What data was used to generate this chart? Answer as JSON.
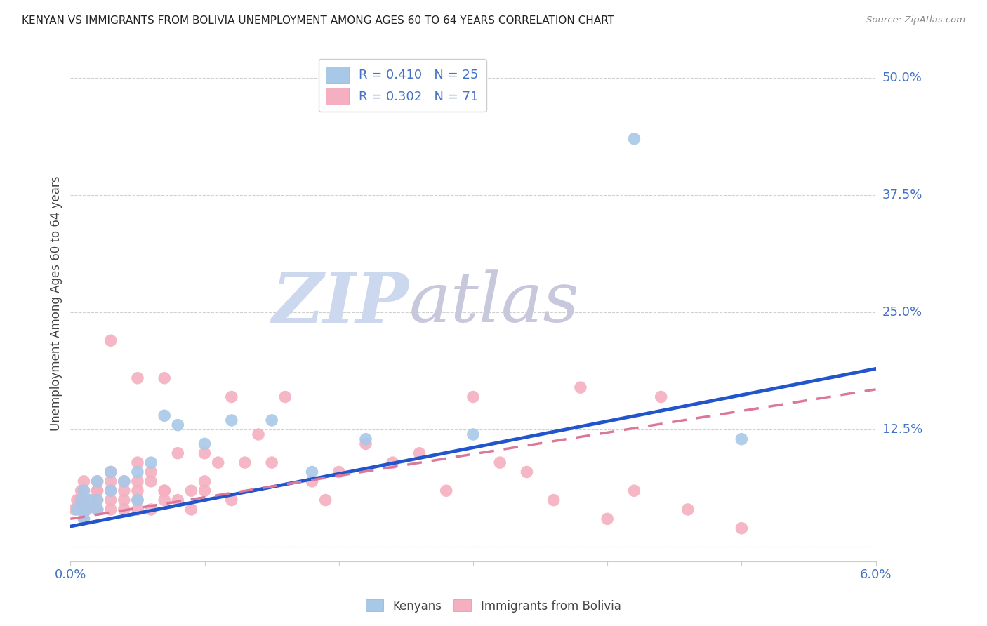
{
  "title": "KENYAN VS IMMIGRANTS FROM BOLIVIA UNEMPLOYMENT AMONG AGES 60 TO 64 YEARS CORRELATION CHART",
  "source": "Source: ZipAtlas.com",
  "ylabel": "Unemployment Among Ages 60 to 64 years",
  "ytick_labels": [
    "12.5%",
    "25.0%",
    "37.5%",
    "50.0%"
  ],
  "ytick_values": [
    0.125,
    0.25,
    0.375,
    0.5
  ],
  "xmin": 0.0,
  "xmax": 0.06,
  "ymin": -0.015,
  "ymax": 0.535,
  "kenyan_R": 0.41,
  "kenyan_N": 25,
  "bolivia_R": 0.302,
  "bolivia_N": 71,
  "kenyan_color": "#a8c8e8",
  "bolivia_color": "#f4b0c0",
  "kenyan_line_color": "#2255cc",
  "bolivia_line_color": "#dd7799",
  "kenyan_line_intercept": 0.022,
  "kenyan_line_slope": 2.8,
  "bolivia_line_intercept": 0.03,
  "bolivia_line_slope": 2.3,
  "watermark_zip_color": "#c8d8f0",
  "watermark_atlas_color": "#c8c8d8",
  "background_color": "#ffffff",
  "title_fontsize": 11,
  "kenyan_x": [
    0.0005,
    0.0008,
    0.001,
    0.001,
    0.0012,
    0.0015,
    0.002,
    0.002,
    0.002,
    0.003,
    0.003,
    0.004,
    0.005,
    0.005,
    0.006,
    0.007,
    0.008,
    0.01,
    0.012,
    0.015,
    0.018,
    0.022,
    0.03,
    0.042,
    0.05
  ],
  "kenyan_y": [
    0.04,
    0.05,
    0.03,
    0.06,
    0.04,
    0.05,
    0.05,
    0.07,
    0.04,
    0.06,
    0.08,
    0.07,
    0.05,
    0.08,
    0.09,
    0.14,
    0.13,
    0.11,
    0.135,
    0.135,
    0.08,
    0.115,
    0.12,
    0.435,
    0.115
  ],
  "bolivia_x": [
    0.0003,
    0.0005,
    0.0007,
    0.0008,
    0.001,
    0.001,
    0.001,
    0.001,
    0.001,
    0.0012,
    0.0015,
    0.002,
    0.002,
    0.002,
    0.002,
    0.002,
    0.002,
    0.003,
    0.003,
    0.003,
    0.003,
    0.003,
    0.003,
    0.004,
    0.004,
    0.004,
    0.004,
    0.005,
    0.005,
    0.005,
    0.005,
    0.005,
    0.005,
    0.006,
    0.006,
    0.006,
    0.007,
    0.007,
    0.007,
    0.007,
    0.008,
    0.008,
    0.009,
    0.009,
    0.01,
    0.01,
    0.01,
    0.011,
    0.012,
    0.012,
    0.013,
    0.014,
    0.015,
    0.016,
    0.018,
    0.019,
    0.02,
    0.022,
    0.024,
    0.026,
    0.028,
    0.03,
    0.032,
    0.034,
    0.036,
    0.038,
    0.04,
    0.042,
    0.044,
    0.046,
    0.05
  ],
  "bolivia_y": [
    0.04,
    0.05,
    0.05,
    0.06,
    0.03,
    0.04,
    0.06,
    0.07,
    0.05,
    0.04,
    0.05,
    0.04,
    0.06,
    0.07,
    0.05,
    0.04,
    0.06,
    0.04,
    0.06,
    0.07,
    0.08,
    0.05,
    0.22,
    0.04,
    0.06,
    0.07,
    0.05,
    0.04,
    0.06,
    0.07,
    0.09,
    0.05,
    0.18,
    0.04,
    0.07,
    0.08,
    0.06,
    0.06,
    0.18,
    0.05,
    0.05,
    0.1,
    0.04,
    0.06,
    0.07,
    0.1,
    0.06,
    0.09,
    0.16,
    0.05,
    0.09,
    0.12,
    0.09,
    0.16,
    0.07,
    0.05,
    0.08,
    0.11,
    0.09,
    0.1,
    0.06,
    0.16,
    0.09,
    0.08,
    0.05,
    0.17,
    0.03,
    0.06,
    0.16,
    0.04,
    0.02
  ]
}
